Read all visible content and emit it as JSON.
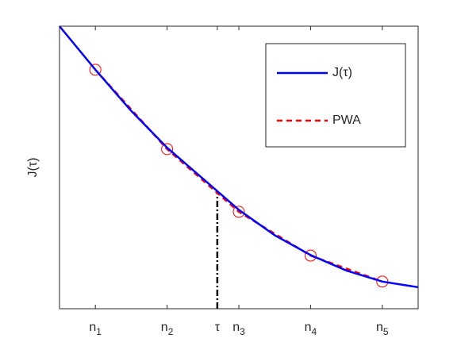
{
  "chart_data": {
    "type": "line",
    "ylabel": "J(τ)",
    "xlim": [
      0.5,
      5.5
    ],
    "ylim": [
      0,
      1
    ],
    "xticks": [
      {
        "value": 1,
        "label": "n1"
      },
      {
        "value": 2,
        "label": "n2"
      },
      {
        "value": 2.7,
        "label": "τ"
      },
      {
        "value": 3,
        "label": "n3"
      },
      {
        "value": 4,
        "label": "n4"
      },
      {
        "value": 5,
        "label": "n5"
      }
    ],
    "series": [
      {
        "name": "J(τ)",
        "color": "#0000ff",
        "style": "solid",
        "x": [
          0.5,
          1,
          1.5,
          2,
          2.5,
          3,
          3.5,
          4,
          4.5,
          5,
          5.5
        ],
        "values": [
          1,
          0.846,
          0.7,
          0.57,
          0.46,
          0.35,
          0.26,
          0.19,
          0.135,
          0.096,
          0.076
        ]
      },
      {
        "name": "PWA",
        "color": "#ff0000",
        "style": "dashed",
        "marker": "o",
        "x": [
          1,
          2,
          3,
          4,
          5
        ],
        "values": [
          0.846,
          0.565,
          0.343,
          0.188,
          0.096
        ]
      }
    ],
    "vline": {
      "x": 2.7,
      "y": 0.41,
      "color": "#000000"
    },
    "legend": "upper right"
  }
}
